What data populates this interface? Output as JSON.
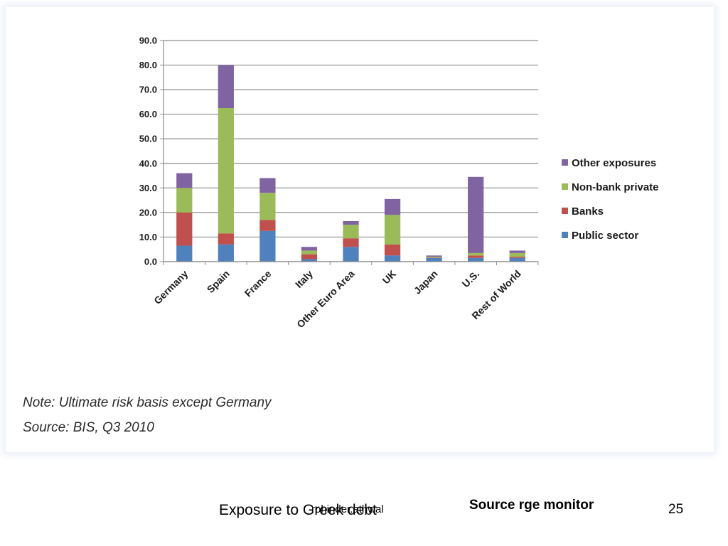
{
  "chart_data": {
    "type": "bar",
    "stacked": true,
    "title": "",
    "xlabel": "",
    "ylabel": "",
    "ylim": [
      0,
      90
    ],
    "yticks": [
      "90.0",
      "80.0",
      "70.0",
      "60.0",
      "50.0",
      "40.0",
      "30.0",
      "20.0",
      "10.0",
      "0.0"
    ],
    "grid": true,
    "legend_position": "right",
    "categories": [
      "Germany",
      "Spain",
      "France",
      "Italy",
      "Other Euro Area",
      "UK",
      "Japan",
      "U.S.",
      "Rest of World"
    ],
    "series": [
      {
        "name": "Public sector",
        "color": "#4f81bd",
        "values": [
          6.5,
          7.0,
          12.5,
          1.0,
          6.0,
          2.5,
          1.5,
          1.5,
          1.5
        ]
      },
      {
        "name": "Banks",
        "color": "#c0504d",
        "values": [
          13.5,
          4.5,
          4.5,
          2.0,
          3.5,
          4.5,
          0.2,
          1.0,
          0.5
        ]
      },
      {
        "name": "Non-bank private",
        "color": "#9bbb59",
        "values": [
          10.0,
          51.0,
          11.0,
          1.5,
          5.5,
          12.0,
          0.3,
          1.0,
          1.5
        ]
      },
      {
        "name": "Other exposures",
        "color": "#8064a2",
        "values": [
          6.0,
          17.5,
          6.0,
          1.5,
          1.5,
          6.5,
          0.5,
          31.0,
          1.0
        ]
      }
    ],
    "legend_order": [
      "Other exposures",
      "Non-bank private",
      "Banks",
      "Public sector"
    ]
  },
  "note": "Note: Ultimate risk basis except Germany",
  "source": "Source: BIS, Q3 2010",
  "footer": {
    "title": "Exposure to Greek debt",
    "author": "rohinder.athwal",
    "source": "Source rge monitor",
    "page_number": "25"
  }
}
